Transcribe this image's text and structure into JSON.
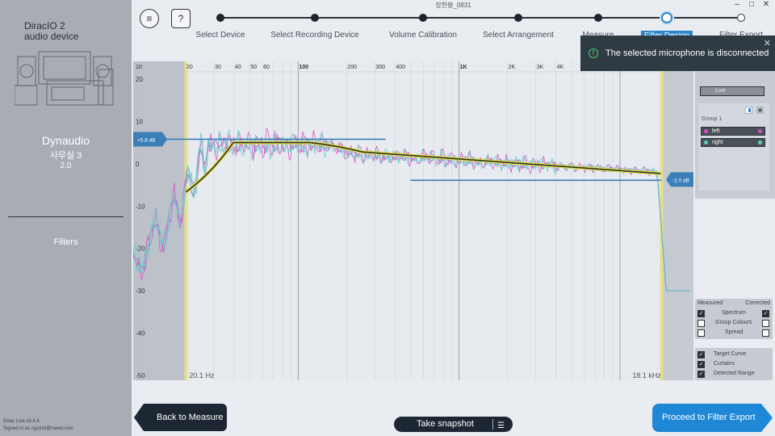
{
  "window": {
    "title": "장한평_0831"
  },
  "sidebar": {
    "device_line1": "DiracIO 2",
    "device_line2": "audio device",
    "system_name": "Dynaudio",
    "room": "사무실 3",
    "channels": "2.0",
    "section": "Filters",
    "version": "Dirac Live v3.4.4",
    "signed_in": "Signed in as ngsinsl@naver.com"
  },
  "header": {
    "steps": [
      {
        "label": "Select Device",
        "state": "done"
      },
      {
        "label": "Select Recording Device",
        "state": "done"
      },
      {
        "label": "Volume Calibration",
        "state": "done"
      },
      {
        "label": "Select Arrangement",
        "state": "done"
      },
      {
        "label": "Measure",
        "state": "done"
      },
      {
        "label": "Filter Design",
        "state": "active"
      },
      {
        "label": "Filter Export",
        "state": "todo"
      }
    ]
  },
  "toast": {
    "message": "The selected microphone is disconnected"
  },
  "graph": {
    "y_ticks": [
      "20",
      "10",
      "0",
      "-10",
      "-20",
      "-30",
      "-40",
      "-50"
    ],
    "y_tick_values": [
      20,
      10,
      0,
      -10,
      -20,
      -30,
      -40,
      -50
    ],
    "x_ticks": [
      "20",
      "30",
      "40",
      "50",
      "60",
      "100",
      "200",
      "300",
      "400",
      "1K",
      "2K",
      "3K",
      "4K"
    ],
    "x_tick_values": [
      20,
      30,
      40,
      50,
      60,
      100,
      200,
      300,
      400,
      1000,
      2000,
      3000,
      4000
    ],
    "top_left_label": "10",
    "left_curtain_label": "20.1 Hz",
    "right_curtain_label": "18.1 kHz",
    "left_curtain_hz": 20.1,
    "right_curtain_hz": 18100,
    "low_handle_label": "+5.8 dB",
    "high_handle_label": "-2.0 dB",
    "colors": {
      "left": "#d84fc8",
      "right": "#5ed2c6",
      "target": "#2a2f36",
      "target_outline": "#e6e03a",
      "handle": "#3a7fb8"
    }
  },
  "panel": {
    "live_label": "Live",
    "group_label": "Group 1",
    "channels": [
      {
        "label": "left",
        "color": "#d84fc8"
      },
      {
        "label": "right",
        "color": "#5ed2c6"
      }
    ],
    "measured_label": "Measured",
    "corrected_label": "Corrected",
    "options": [
      {
        "label": "Spectrum",
        "measured": true,
        "corrected": true
      },
      {
        "label": "Group Colours",
        "measured": false,
        "corrected": false
      },
      {
        "label": "Spread",
        "measured": false,
        "corrected": false
      }
    ],
    "toggles": [
      {
        "label": "Target Curve",
        "checked": true
      },
      {
        "label": "Curtains",
        "checked": true
      },
      {
        "label": "Detected Range",
        "checked": true
      }
    ]
  },
  "footer": {
    "back_label": "Back to Measure",
    "snapshot_label": "Take snapshot",
    "proceed_label": "Proceed to Filter Export"
  }
}
